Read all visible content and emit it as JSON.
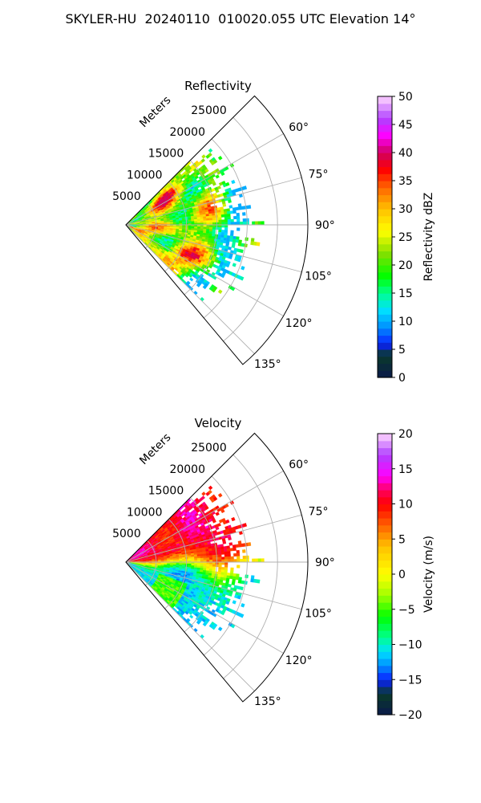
{
  "figure": {
    "title": "SKYLER-HU  20240110  010020.055 UTC Elevation 14°"
  },
  "chart_data": [
    {
      "type": "heatmap",
      "subtype": "polar-sector",
      "title": "Reflectivity",
      "range_label": "Meters",
      "range_ticks": [
        5000,
        10000,
        15000,
        20000,
        25000
      ],
      "range_tick_labels": [
        "5000",
        "10000",
        "15000",
        "20000",
        "25000"
      ],
      "range_lim": [
        0,
        30000
      ],
      "theta_ticks": [
        60,
        75,
        90,
        105,
        120,
        135
      ],
      "theta_tick_labels": [
        "60°",
        "75°",
        "90°",
        "105°",
        "120°",
        "135°"
      ],
      "theta_lim": [
        45,
        140
      ],
      "data_extent": {
        "theta": [
          45,
          135
        ],
        "range_max": 20000
      },
      "grid": true,
      "colorbar": {
        "label": "Reflectivity dBZ",
        "min": 0,
        "max": 50,
        "ticks": [
          0,
          5,
          10,
          15,
          20,
          25,
          30,
          35,
          40,
          45,
          50
        ],
        "tick_labels": [
          "0",
          "5",
          "10",
          "15",
          "20",
          "25",
          "30",
          "35",
          "40",
          "45",
          "50"
        ],
        "colormap": "pyart_NWSRef",
        "stops": [
          {
            "v": 0,
            "c": "#0a1a4a"
          },
          {
            "v": 4,
            "c": "#0a3a2a"
          },
          {
            "v": 6,
            "c": "#0a20ff"
          },
          {
            "v": 9,
            "c": "#0090ff"
          },
          {
            "v": 12,
            "c": "#00e0ff"
          },
          {
            "v": 15,
            "c": "#00ff90"
          },
          {
            "v": 18,
            "c": "#00ff00"
          },
          {
            "v": 22,
            "c": "#80e000"
          },
          {
            "v": 26,
            "c": "#ffff00"
          },
          {
            "v": 30,
            "c": "#ffc000"
          },
          {
            "v": 34,
            "c": "#ff6000"
          },
          {
            "v": 37,
            "c": "#ff0000"
          },
          {
            "v": 40,
            "c": "#d00060"
          },
          {
            "v": 43,
            "c": "#ff00ff"
          },
          {
            "v": 46,
            "c": "#b040ff"
          },
          {
            "v": 50,
            "c": "#ffd8ff"
          }
        ]
      },
      "field_model": "banded storm echo, strongest near 8–12 km and along the northern and southern flanks"
    },
    {
      "type": "heatmap",
      "subtype": "polar-sector",
      "title": "Velocity",
      "range_label": "Meters",
      "range_ticks": [
        5000,
        10000,
        15000,
        20000,
        25000
      ],
      "range_tick_labels": [
        "5000",
        "10000",
        "15000",
        "20000",
        "25000"
      ],
      "range_lim": [
        0,
        30000
      ],
      "theta_ticks": [
        60,
        75,
        90,
        105,
        120,
        135
      ],
      "theta_tick_labels": [
        "60°",
        "75°",
        "90°",
        "105°",
        "120°",
        "135°"
      ],
      "theta_lim": [
        45,
        140
      ],
      "data_extent": {
        "theta": [
          45,
          135
        ],
        "range_max": 20000
      },
      "grid": true,
      "colorbar": {
        "label": "Velocity (m/s)",
        "min": -20,
        "max": 20,
        "ticks": [
          -20,
          -15,
          -10,
          -5,
          0,
          5,
          10,
          15,
          20
        ],
        "tick_labels": [
          "−20",
          "−15",
          "−10",
          "−5",
          "0",
          "5",
          "10",
          "15",
          "20"
        ],
        "colormap": "pyart_BuDRd18",
        "stops": [
          {
            "v": -20,
            "c": "#0a1a4a"
          },
          {
            "v": -17,
            "c": "#0a3a2a"
          },
          {
            "v": -15,
            "c": "#0a20ff"
          },
          {
            "v": -13,
            "c": "#0090ff"
          },
          {
            "v": -11,
            "c": "#00e0ff"
          },
          {
            "v": -9,
            "c": "#00ff90"
          },
          {
            "v": -6,
            "c": "#00ff00"
          },
          {
            "v": -3,
            "c": "#a0ff00"
          },
          {
            "v": 0,
            "c": "#ffff00"
          },
          {
            "v": 4,
            "c": "#ffc000"
          },
          {
            "v": 7,
            "c": "#ff6000"
          },
          {
            "v": 10,
            "c": "#ff0000"
          },
          {
            "v": 12,
            "c": "#ff0060"
          },
          {
            "v": 14,
            "c": "#ff00ff"
          },
          {
            "v": 17,
            "c": "#b040ff"
          },
          {
            "v": 20,
            "c": "#ffd8ff"
          }
        ]
      },
      "field_model": "outbound (positive) north of 80°, inbound (negative) south of 100°, zero band near 95°"
    }
  ]
}
